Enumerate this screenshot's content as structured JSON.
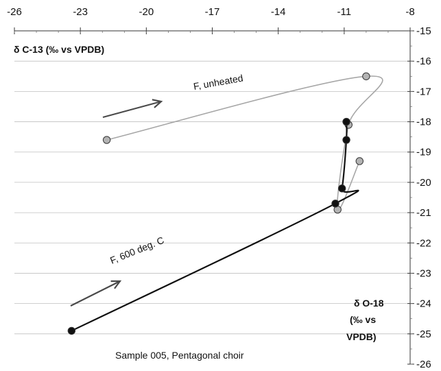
{
  "chart_data": {
    "type": "scatter",
    "title": "",
    "caption": "Sample 005, Pentagonal choir",
    "x_axis": {
      "label_lines": [
        "δ O-18",
        "(‰ vs",
        "VPDB)"
      ],
      "min": -26,
      "max": -8,
      "ticks": [
        -26,
        -23,
        -20,
        -17,
        -14,
        -11,
        -8
      ],
      "position": "top"
    },
    "y_axis": {
      "label": "δ C-13 (‰ vs VPDB)",
      "min": -26,
      "max": -15,
      "ticks": [
        -15,
        -16,
        -17,
        -18,
        -19,
        -20,
        -21,
        -22,
        -23,
        -24,
        -25,
        -26
      ],
      "position": "right"
    },
    "grid": true,
    "series": [
      {
        "name": "F, unheated",
        "color": "#a6a6a6",
        "marker_fill": "#b3b3b3",
        "points": [
          {
            "x": -21.8,
            "y": -18.6
          },
          {
            "x": -10.0,
            "y": -16.5
          },
          {
            "x": -10.8,
            "y": -18.1
          },
          {
            "x": -11.3,
            "y": -20.9
          },
          {
            "x": -10.3,
            "y": -19.3
          }
        ]
      },
      {
        "name": "F, 600 deg. C",
        "color": "#111111",
        "marker_fill": "#111111",
        "points": [
          {
            "x": -23.4,
            "y": -24.9
          },
          {
            "x": -11.4,
            "y": -20.7
          },
          {
            "x": -11.1,
            "y": -20.2
          },
          {
            "x": -10.9,
            "y": -18.6
          },
          {
            "x": -10.9,
            "y": -18.0
          }
        ]
      }
    ]
  }
}
